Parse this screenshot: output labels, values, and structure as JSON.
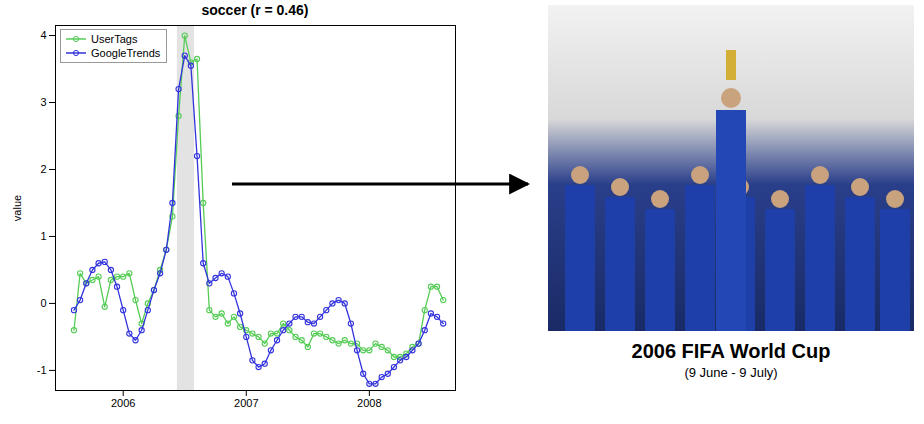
{
  "chart_data": {
    "type": "line",
    "title": "soccer (r = 0.46)",
    "y_label": "value",
    "x": [
      2005.6,
      2005.65,
      2005.7,
      2005.75,
      2005.8,
      2005.85,
      2005.9,
      2005.95,
      2006,
      2006.05,
      2006.1,
      2006.15,
      2006.2,
      2006.25,
      2006.3,
      2006.35,
      2006.4,
      2006.45,
      2006.5,
      2006.55,
      2006.6,
      2006.65,
      2006.7,
      2006.75,
      2006.8,
      2006.85,
      2006.9,
      2006.95,
      2007,
      2007.05,
      2007.1,
      2007.15,
      2007.2,
      2007.25,
      2007.3,
      2007.35,
      2007.4,
      2007.45,
      2007.5,
      2007.55,
      2007.6,
      2007.65,
      2007.7,
      2007.75,
      2007.8,
      2007.85,
      2007.9,
      2007.95,
      2008,
      2008.05,
      2008.1,
      2008.15,
      2008.2,
      2008.25,
      2008.3,
      2008.35,
      2008.4,
      2008.45,
      2008.5,
      2008.55,
      2008.6
    ],
    "series": [
      {
        "name": "UserTags",
        "color": "#55cc55",
        "marker": "circle",
        "values": [
          -0.4,
          0.45,
          0.3,
          0.35,
          0.4,
          -0.05,
          0.35,
          0.4,
          0.4,
          0.45,
          0.05,
          -0.3,
          0.0,
          0.2,
          0.5,
          0.8,
          1.3,
          2.8,
          4.0,
          3.6,
          3.65,
          1.5,
          -0.1,
          -0.2,
          -0.15,
          -0.3,
          -0.2,
          -0.35,
          -0.4,
          -0.45,
          -0.5,
          -0.6,
          -0.45,
          -0.45,
          -0.3,
          -0.4,
          -0.5,
          -0.55,
          -0.65,
          -0.45,
          -0.45,
          -0.5,
          -0.55,
          -0.6,
          -0.55,
          -0.6,
          -0.6,
          -0.7,
          -0.7,
          -0.6,
          -0.65,
          -0.7,
          -0.8,
          -0.8,
          -0.75,
          -0.65,
          -0.6,
          -0.1,
          0.25,
          0.25,
          0.05
        ]
      },
      {
        "name": "GoogleTrends",
        "color": "#3333dd",
        "marker": "circle",
        "values": [
          -0.1,
          0.05,
          0.3,
          0.5,
          0.6,
          0.62,
          0.5,
          0.25,
          -0.1,
          -0.45,
          -0.55,
          -0.4,
          -0.1,
          0.2,
          0.45,
          0.8,
          1.5,
          3.2,
          3.7,
          3.55,
          2.2,
          0.6,
          0.3,
          0.38,
          0.45,
          0.4,
          0.15,
          -0.15,
          -0.5,
          -0.85,
          -0.95,
          -0.9,
          -0.7,
          -0.55,
          -0.4,
          -0.3,
          -0.2,
          -0.2,
          -0.28,
          -0.3,
          -0.2,
          -0.1,
          0.0,
          0.05,
          0.0,
          -0.3,
          -0.7,
          -1.05,
          -1.2,
          -1.2,
          -1.1,
          -1.05,
          -0.95,
          -0.85,
          -0.8,
          -0.7,
          -0.6,
          -0.4,
          -0.15,
          -0.2,
          -0.3
        ]
      }
    ],
    "xlim": [
      2005.45,
      2008.7
    ],
    "ylim": [
      -1.3,
      4.15
    ],
    "xticks": [
      2006,
      2007,
      2008
    ],
    "yticks": [
      -1,
      0,
      1,
      2,
      3,
      4
    ],
    "legend": "top-left",
    "highlight": [
      2006.44,
      2006.58
    ],
    "annotation": {
      "title": "2006 FIFA World Cup",
      "subtitle": "(9 June - 9 July)"
    }
  }
}
